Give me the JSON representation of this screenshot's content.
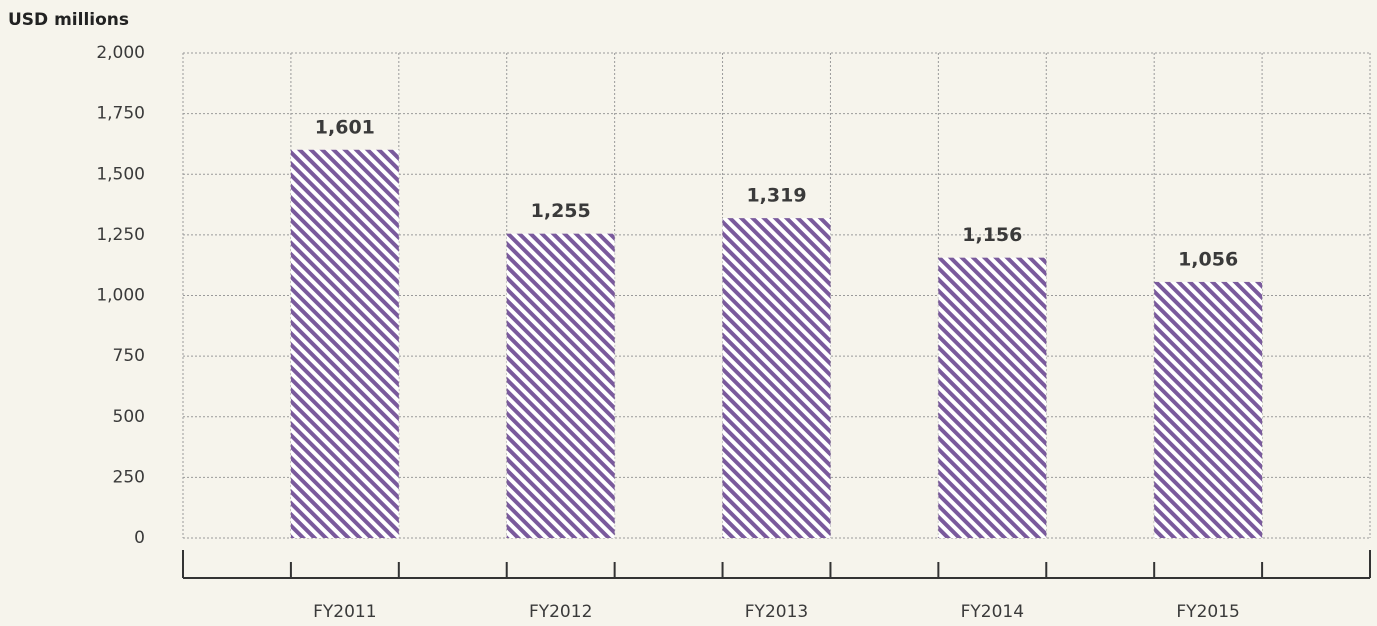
{
  "chart_data": {
    "type": "bar",
    "y_label": "USD millions",
    "categories": [
      "FY2011",
      "FY2012",
      "FY2013",
      "FY2014",
      "FY2015"
    ],
    "values": [
      1601,
      1255,
      1319,
      1156,
      1056
    ],
    "value_labels": [
      "1,601",
      "1,255",
      "1,319",
      "1,156",
      "1,056"
    ],
    "color": "#7a5a9c",
    "ylim": [
      0,
      2000
    ],
    "yticks": [
      0,
      250,
      500,
      750,
      {
        "value": 1000,
        "label": "1,000"
      },
      {
        "value": 1250,
        "label": "1,250"
      },
      {
        "value": 1500,
        "label": "1,500"
      },
      {
        "value": 1750,
        "label": "1,750"
      },
      {
        "value": 2000,
        "label": "2,000"
      }
    ],
    "grid": true
  }
}
